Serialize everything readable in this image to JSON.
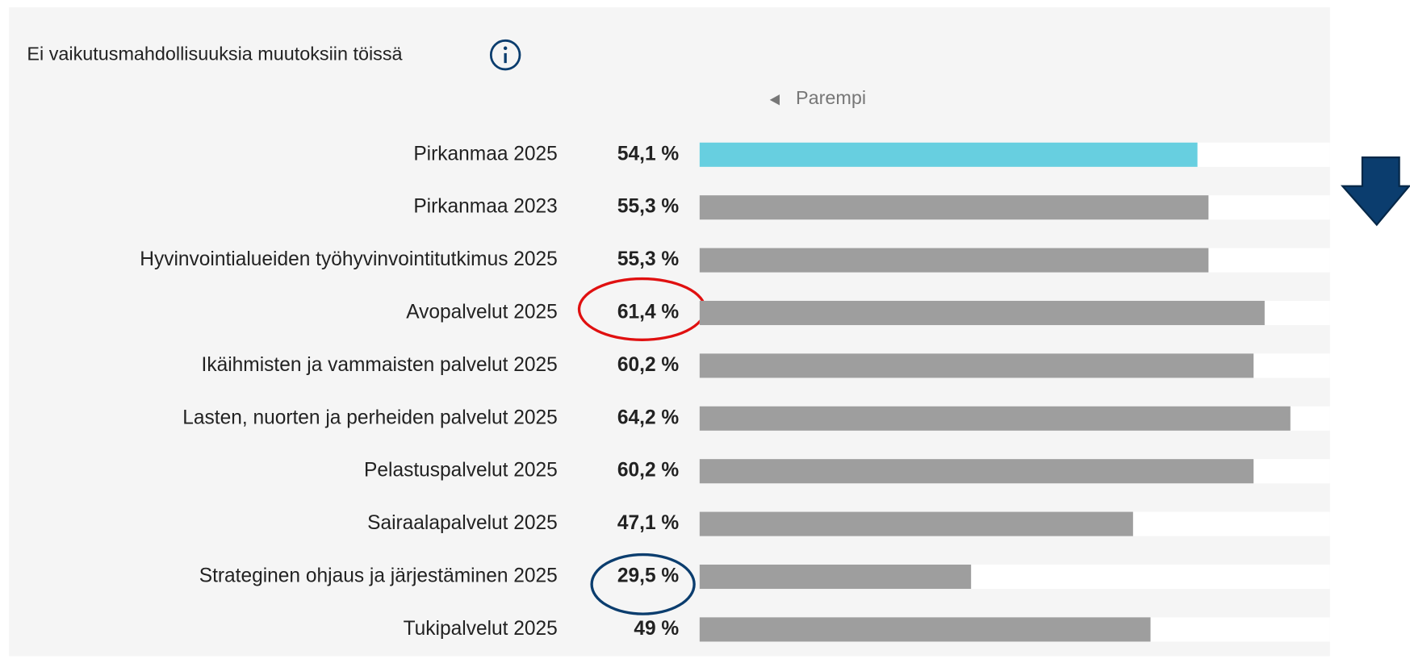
{
  "chart_data": {
    "type": "bar",
    "orientation": "horizontal",
    "title": "Ei vaikutusmahdollisuuksia muutoksiin töissä",
    "subtitle": "Parempi",
    "categories": [
      "Pirkanmaa 2025",
      "Pirkanmaa 2023",
      "Hyvinvointialueiden työhyvinvointitutkimus 2025",
      "Avopalvelut 2025",
      "Ikäihmisten ja vammaisten palvelut 2025",
      "Lasten, nuorten ja perheiden palvelut 2025",
      "Pelastuspalvelut 2025",
      "Sairaalapalvelut 2025",
      "Strateginen ohjaus ja järjestäminen 2025",
      "Tukipalvelut 2025"
    ],
    "values": [
      54.1,
      55.3,
      55.3,
      61.4,
      60.2,
      64.2,
      60.2,
      47.1,
      29.5,
      49
    ],
    "value_labels": [
      "54,1 %",
      "55,3 %",
      "55,3 %",
      "61,4 %",
      "60,2 %",
      "64,2 %",
      "60,2 %",
      "47,1 %",
      "29,5 %",
      "49 %"
    ],
    "colors": [
      "#67cfe0",
      "#9e9e9e",
      "#9e9e9e",
      "#9e9e9e",
      "#9e9e9e",
      "#9e9e9e",
      "#9e9e9e",
      "#9e9e9e",
      "#9e9e9e",
      "#9e9e9e"
    ],
    "xlim": [
      0,
      68.5
    ]
  }
}
